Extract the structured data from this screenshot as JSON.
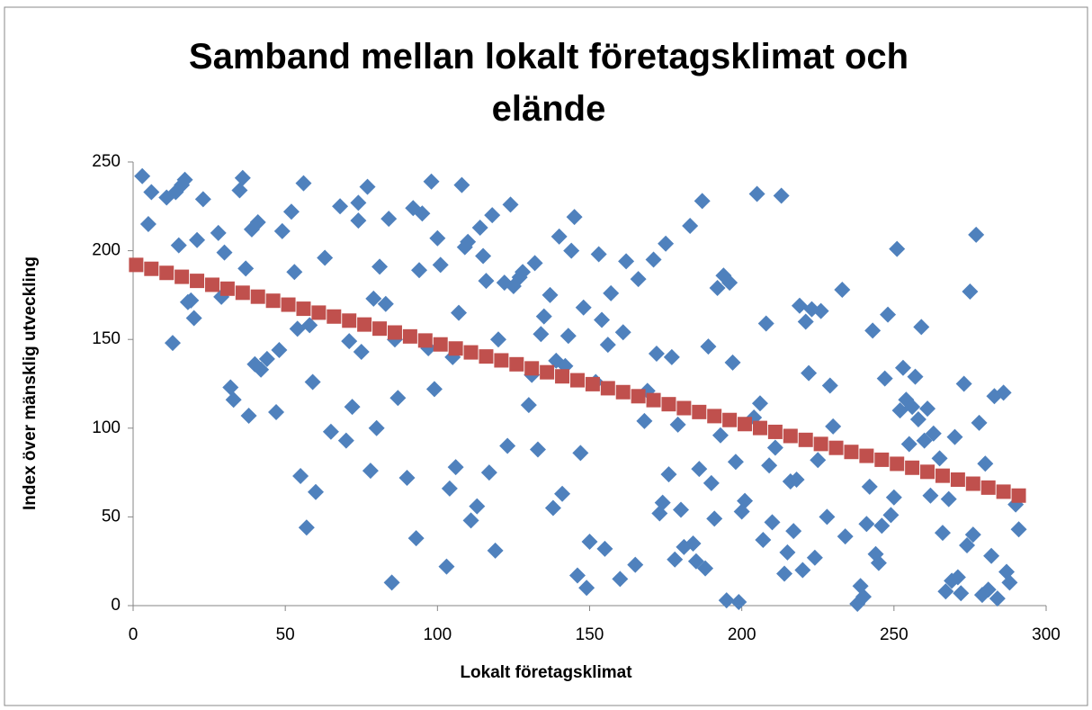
{
  "chart_data": {
    "type": "scatter",
    "title": "Samband mellan lokalt företagsklimat och elände",
    "x_label": "Lokalt företagsklimat",
    "y_label": "Index över mänsklig utveckling",
    "xlim": [
      0,
      300
    ],
    "xticks": [
      0,
      50,
      100,
      150,
      200,
      250,
      300
    ],
    "ylim": [
      0,
      250
    ],
    "yticks": [
      0,
      50,
      100,
      150,
      200,
      250
    ],
    "grid": false,
    "series": [
      {
        "color": "#4f81bd",
        "marker": "diamond",
        "x": [
          3,
          5,
          6,
          11,
          13,
          14,
          15,
          16,
          17,
          18,
          19,
          20,
          21,
          23,
          28,
          29,
          30,
          32,
          33,
          35,
          36,
          37,
          38,
          39,
          40,
          41,
          42,
          44,
          47,
          48,
          49,
          52,
          53,
          54,
          55,
          56,
          57,
          58,
          59,
          60,
          63,
          65,
          68,
          70,
          71,
          72,
          74,
          74,
          75,
          77,
          78,
          79,
          80,
          81,
          83,
          84,
          85,
          87,
          86,
          90,
          92,
          93,
          94,
          95,
          97,
          98,
          99,
          100,
          101,
          103,
          104,
          105,
          106,
          107,
          108,
          109,
          110,
          111,
          113,
          114,
          115,
          116,
          117,
          118,
          119,
          120,
          122,
          123,
          124,
          125,
          127,
          128,
          130,
          131,
          132,
          133,
          134,
          135,
          137,
          138,
          139,
          140,
          141,
          142,
          143,
          144,
          145,
          146,
          147,
          148,
          149,
          150,
          152,
          153,
          154,
          155,
          156,
          157,
          160,
          161,
          162,
          165,
          166,
          168,
          169,
          171,
          172,
          173,
          174,
          175,
          176,
          177,
          178,
          179,
          180,
          181,
          183,
          184,
          185,
          186,
          187,
          188,
          189,
          190,
          191,
          192,
          193,
          194,
          195,
          196,
          197,
          198,
          199,
          200,
          201,
          204,
          205,
          206,
          207,
          208,
          209,
          210,
          211,
          213,
          214,
          215,
          216,
          217,
          218,
          219,
          220,
          221,
          222,
          223,
          224,
          225,
          226,
          228,
          229,
          230,
          233,
          234,
          238,
          239,
          240,
          241,
          242,
          243,
          244,
          245,
          246,
          247,
          248,
          249,
          250,
          251,
          252,
          253,
          254,
          255,
          256,
          257,
          258,
          259,
          260,
          261,
          262,
          263,
          265,
          266,
          267,
          268,
          269,
          270,
          271,
          272,
          273,
          274,
          275,
          276,
          277,
          278,
          279,
          280,
          281,
          282,
          283,
          284,
          286,
          287,
          288,
          290,
          291
        ],
        "values": [
          242,
          215,
          233,
          230,
          148,
          233,
          203,
          237,
          240,
          171,
          172,
          162,
          206,
          229,
          210,
          174,
          199,
          123,
          116,
          234,
          241,
          190,
          107,
          212,
          136,
          216,
          133,
          139,
          109,
          144,
          211,
          222,
          188,
          156,
          73,
          238,
          44,
          158,
          126,
          64,
          196,
          98,
          225,
          93,
          149,
          112,
          227,
          217,
          143,
          236,
          76,
          173,
          100,
          191,
          170,
          218,
          13,
          117,
          150,
          72,
          224,
          38,
          189,
          221,
          145,
          239,
          122,
          207,
          192,
          22,
          66,
          140,
          78,
          165,
          237,
          202,
          205,
          48,
          56,
          213,
          197,
          183,
          75,
          220,
          31,
          150,
          182,
          90,
          226,
          180,
          185,
          188,
          113,
          130,
          193,
          88,
          153,
          163,
          175,
          55,
          138,
          208,
          63,
          135,
          152,
          200,
          219,
          17,
          86,
          168,
          10,
          36,
          126,
          198,
          161,
          32,
          147,
          176,
          15,
          154,
          194,
          23,
          184,
          104,
          121,
          195,
          142,
          52,
          58,
          204,
          74,
          140,
          26,
          102,
          54,
          33,
          214,
          35,
          25,
          77,
          228,
          21,
          146,
          69,
          49,
          179,
          96,
          186,
          3,
          182,
          137,
          81,
          2,
          53,
          59,
          106,
          232,
          114,
          37,
          159,
          79,
          47,
          89,
          231,
          18,
          30,
          70,
          42,
          71,
          169,
          20,
          160,
          131,
          167,
          27,
          82,
          166,
          50,
          124,
          101,
          178,
          39,
          1,
          11,
          5,
          46,
          67,
          155,
          29,
          24,
          45,
          128,
          164,
          51,
          61,
          201,
          110,
          134,
          116,
          91,
          112,
          129,
          105,
          157,
          93,
          111,
          62,
          97,
          83,
          41,
          8,
          60,
          14,
          95,
          16,
          7,
          125,
          34,
          177,
          40,
          209,
          103,
          6,
          80,
          9,
          28,
          118,
          4,
          120,
          19,
          13,
          57,
          43
        ]
      },
      {
        "color": "#c0504d",
        "marker": "square",
        "x": [
          1,
          6,
          11,
          16,
          21,
          26,
          31,
          36,
          41,
          46,
          51,
          56,
          61,
          66,
          71,
          76,
          81,
          86,
          91,
          96,
          101,
          106,
          111,
          116,
          121,
          126,
          131,
          136,
          141,
          146,
          151,
          156,
          161,
          166,
          171,
          176,
          181,
          186,
          191,
          196,
          201,
          206,
          211,
          216,
          221,
          226,
          231,
          236,
          241,
          246,
          251,
          256,
          261,
          266,
          271,
          276,
          281,
          286,
          291
        ],
        "values": [
          192,
          189.8,
          187.5,
          185.3,
          183.0,
          180.8,
          178.6,
          176.3,
          174.1,
          171.8,
          169.6,
          167.3,
          165.1,
          162.9,
          160.6,
          158.4,
          156.1,
          153.9,
          151.7,
          149.4,
          147.2,
          144.9,
          142.7,
          140.4,
          138.2,
          136.0,
          133.7,
          131.5,
          129.2,
          127.0,
          124.8,
          122.5,
          120.3,
          118.0,
          115.8,
          113.5,
          111.3,
          109.1,
          106.8,
          104.6,
          102.3,
          100.1,
          97.9,
          95.6,
          93.4,
          91.1,
          88.9,
          86.6,
          84.4,
          82.2,
          79.9,
          77.7,
          75.4,
          73.2,
          71.0,
          68.7,
          66.5,
          64.2,
          62.0
        ]
      }
    ]
  }
}
